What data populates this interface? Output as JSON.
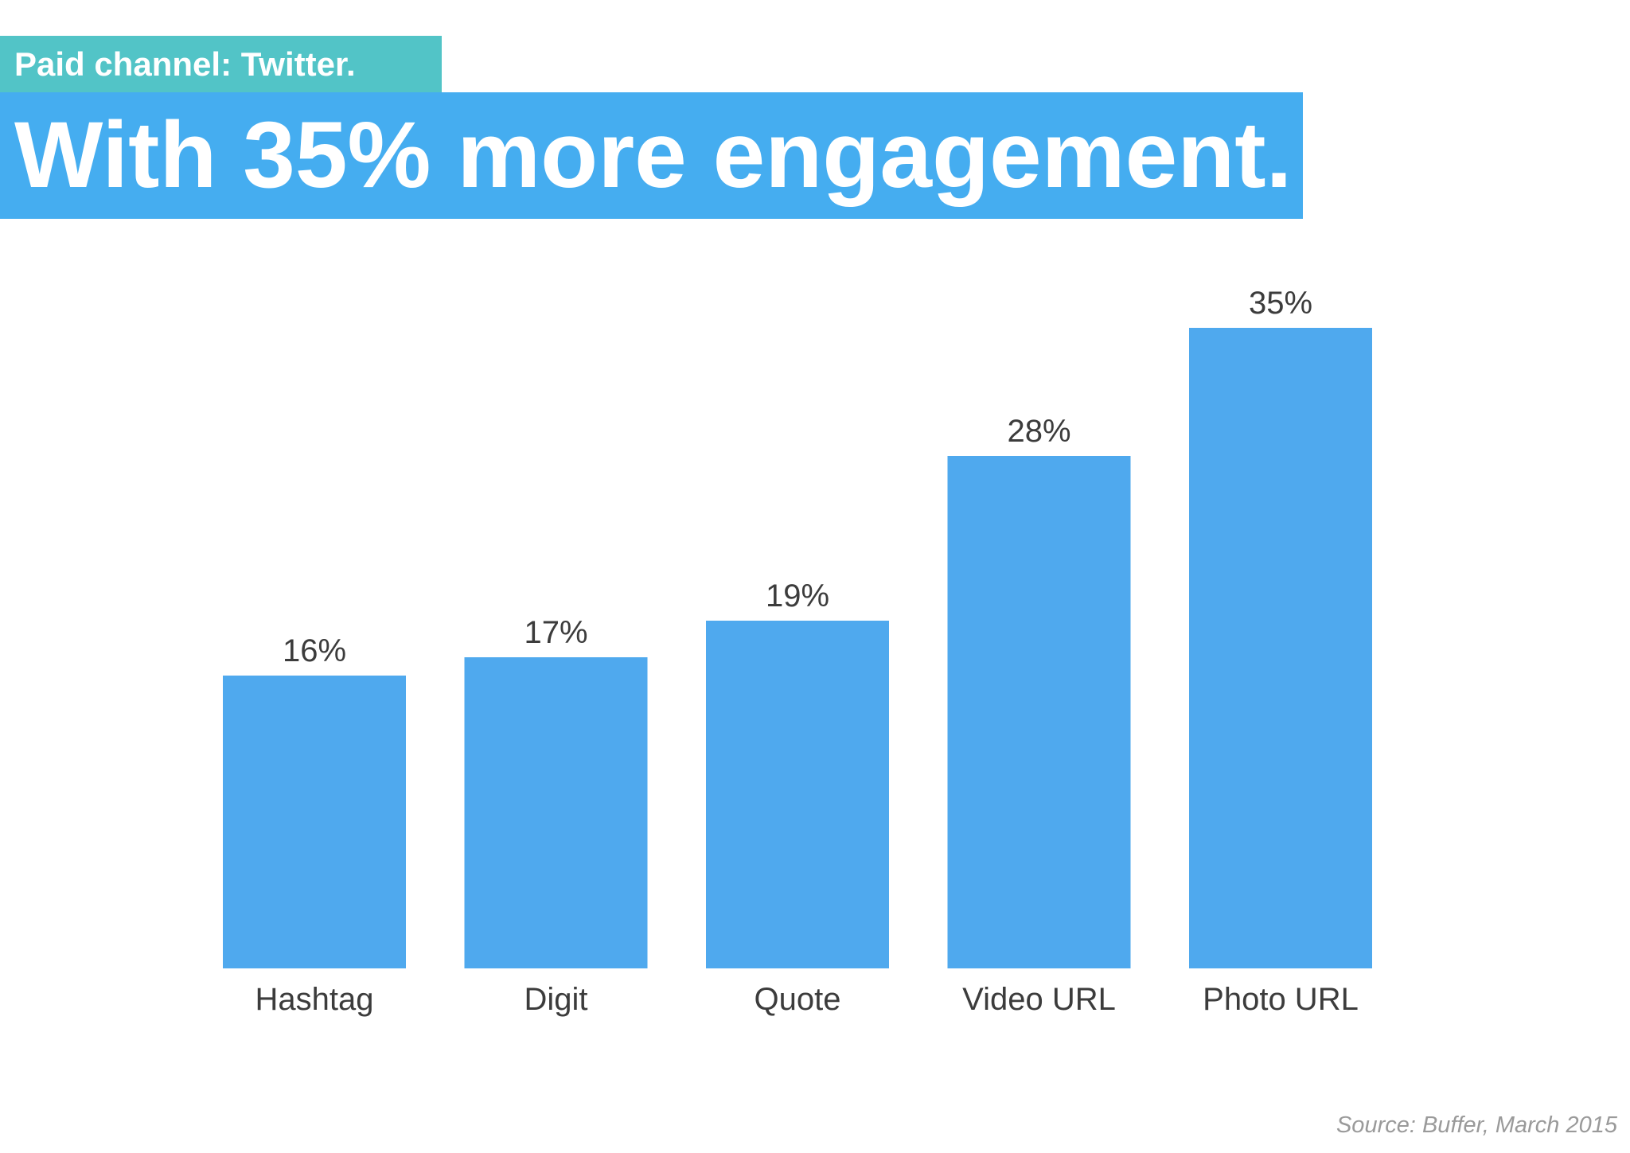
{
  "header": {
    "tag": "Paid channel: Twitter.",
    "headline": "With 35% more engagement."
  },
  "footer": {
    "source": "Source: Buffer, March 2015"
  },
  "colors": {
    "tag_bg": "#52c4c7",
    "headline_bg": "#45adf0",
    "bar": "#4fa9ee",
    "text": "#3c3c3c",
    "source_text": "#9a9a9a"
  },
  "chart_data": {
    "type": "bar",
    "categories": [
      "Hashtag",
      "Digit",
      "Quote",
      "Video URL",
      "Photo URL"
    ],
    "values": [
      16,
      17,
      19,
      28,
      35
    ],
    "value_labels": [
      "16%",
      "17%",
      "19%",
      "28%",
      "35%"
    ],
    "title": "",
    "xlabel": "",
    "ylabel": "",
    "ylim": [
      0,
      35
    ],
    "grid": false,
    "legend": "none"
  }
}
